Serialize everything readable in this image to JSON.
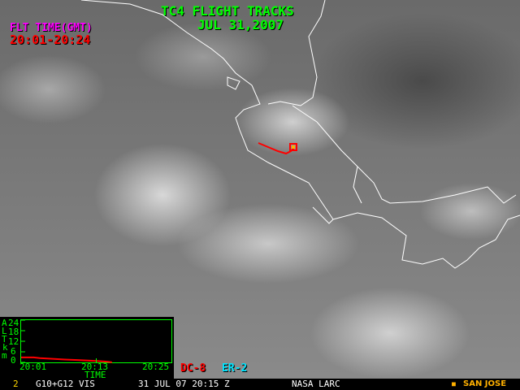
{
  "header": {
    "title": "TC4 FLIGHT TRACKS",
    "date": "JUL 31,2007"
  },
  "flight_time": {
    "label": "FLT TIME(GMT)",
    "range": "20:01-20:24"
  },
  "altitude_chart": {
    "type": "line",
    "ylabel_letters": [
      "A",
      "L",
      "T",
      "k",
      "m"
    ],
    "yticks": [
      "24",
      "18",
      "12",
      "6",
      "0"
    ],
    "ylim": [
      0,
      24
    ],
    "xticks": [
      "20:01",
      "20:13",
      "20:25"
    ],
    "xlabel": "TIME",
    "series": [
      {
        "name": "DC-8",
        "color": "#ff0000",
        "x_minutes_after_2000": [
          1,
          3,
          4,
          6,
          8,
          10,
          12,
          13,
          14,
          15,
          15.5
        ],
        "values": [
          2.8,
          2.8,
          2.4,
          2.0,
          1.6,
          1.3,
          1.0,
          0.8,
          0.6,
          0.3,
          0
        ]
      }
    ]
  },
  "legend": [
    {
      "label": "DC-8",
      "color": "#ff0000"
    },
    {
      "label": "ER-2",
      "color": "#00e5ff"
    }
  ],
  "status_bar": {
    "frame": "2",
    "sensor": "G10+G12 VIS",
    "timestamp": "31 JUL 07 20:15 Z",
    "source": "NASA LARC",
    "site_marker": "■",
    "site": "SAN JOSE"
  },
  "colors": {
    "title": "#00ff00",
    "track": "#ff0000",
    "coastline": "#ffffff",
    "site": "#ffb000"
  }
}
